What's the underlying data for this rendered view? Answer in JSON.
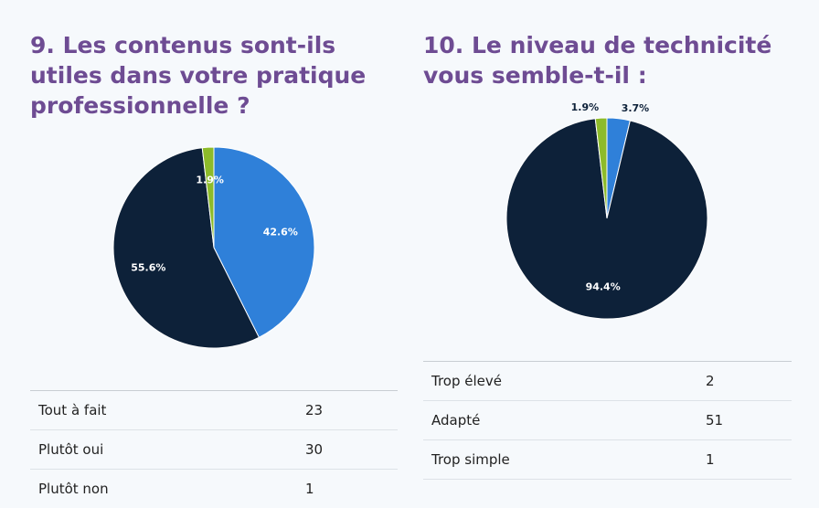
{
  "chart_data": [
    {
      "type": "pie",
      "title": "9. Les contenus sont-ils utiles dans votre pratique professionnelle ?",
      "categories": [
        "Tout à fait",
        "Plutôt oui",
        "Plutôt non"
      ],
      "values": [
        23,
        30,
        1
      ],
      "data_labels": [
        "42.6%",
        "55.6%",
        "1.9%"
      ],
      "colors": [
        "#2f80d9",
        "#0d2139",
        "#8dbb2a"
      ]
    },
    {
      "type": "pie",
      "title": "10. Le niveau de technicité vous semble-t-il :",
      "categories": [
        "Trop élevé",
        "Adapté",
        "Trop simple"
      ],
      "values": [
        2,
        51,
        1
      ],
      "data_labels": [
        "3.7%",
        "94.4%",
        "1.9%"
      ],
      "colors": [
        "#2f80d9",
        "#0d2139",
        "#8dbb2a"
      ]
    }
  ]
}
